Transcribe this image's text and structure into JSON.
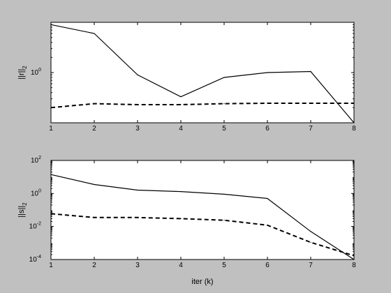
{
  "chart_data": [
    {
      "type": "line",
      "x": [
        1,
        2,
        3,
        4,
        5,
        6,
        7,
        8
      ],
      "xlim": [
        1,
        8
      ],
      "ylim": [
        0.1,
        10
      ],
      "yscale": "log",
      "ylabel": {
        "main": "||r||",
        "sub": "2"
      },
      "yticks": [
        {
          "value": 1,
          "base": "10",
          "exp": "0"
        }
      ],
      "series": [
        {
          "style": "solid",
          "values": [
            9.0,
            6.0,
            0.9,
            0.33,
            0.8,
            1.0,
            1.05,
            0.1
          ]
        },
        {
          "style": "dashed",
          "values": [
            0.2,
            0.24,
            0.23,
            0.23,
            0.24,
            0.245,
            0.245,
            0.245
          ]
        }
      ],
      "grid": false
    },
    {
      "type": "line",
      "x": [
        1,
        2,
        3,
        4,
        5,
        6,
        7,
        8
      ],
      "xlim": [
        1,
        8
      ],
      "ylim": [
        0.0001,
        100
      ],
      "yscale": "log",
      "xlabel": "iter (k)",
      "ylabel": {
        "main": "||s||",
        "sub": "2"
      },
      "yticks": [
        {
          "value": 100,
          "base": "10",
          "exp": "2"
        },
        {
          "value": 1,
          "base": "10",
          "exp": "0"
        },
        {
          "value": 0.01,
          "base": "10",
          "exp": "-2"
        },
        {
          "value": 0.0001,
          "base": "10",
          "exp": "-4"
        }
      ],
      "series": [
        {
          "style": "solid",
          "values": [
            14,
            3.5,
            1.6,
            1.3,
            0.9,
            0.5,
            0.005,
            0.0001
          ]
        },
        {
          "style": "dashed",
          "values": [
            0.06,
            0.035,
            0.035,
            0.03,
            0.024,
            0.012,
            0.0011,
            0.00017
          ]
        }
      ],
      "grid": false
    }
  ],
  "xticklabels": [
    "1",
    "2",
    "3",
    "4",
    "5",
    "6",
    "7",
    "8"
  ]
}
